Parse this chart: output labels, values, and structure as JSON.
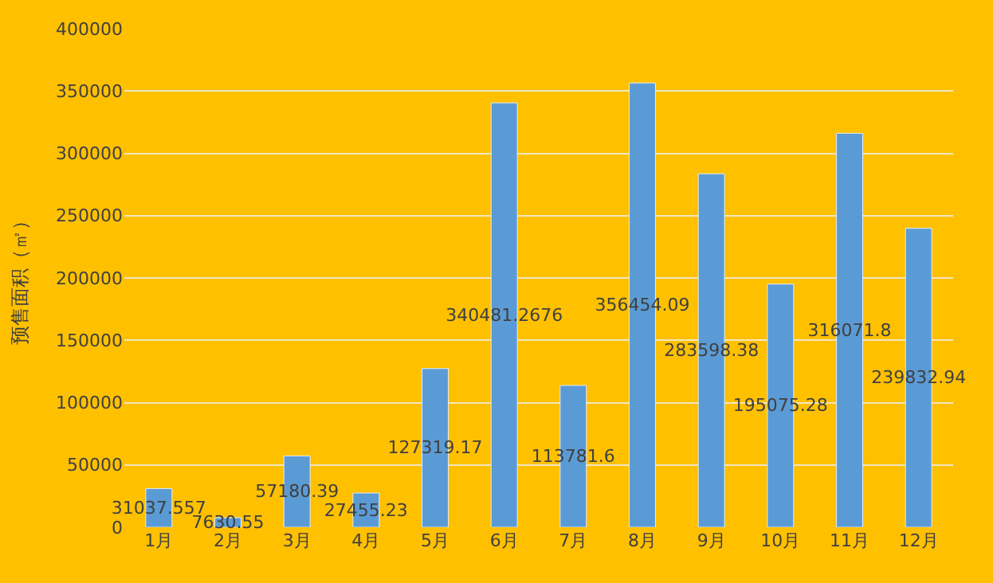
{
  "chart_data": {
    "type": "bar",
    "ylabel": "预售面积（㎡）",
    "categories": [
      "1月",
      "2月",
      "3月",
      "4月",
      "5月",
      "6月",
      "7月",
      "8月",
      "9月",
      "10月",
      "11月",
      "12月"
    ],
    "values": [
      31037.557,
      7630.55,
      57180.39,
      27455.23,
      127319.17,
      340481.2676,
      113781.6,
      356454.09,
      283598.38,
      195075.28,
      316071.8,
      239832.94
    ],
    "color": "#5b9bd5",
    "ylim": [
      0,
      400000
    ],
    "yticks": [
      0,
      50000,
      100000,
      150000,
      200000,
      250000,
      300000,
      350000,
      400000
    ],
    "grid": "y",
    "data_labels": true,
    "legend": false
  }
}
